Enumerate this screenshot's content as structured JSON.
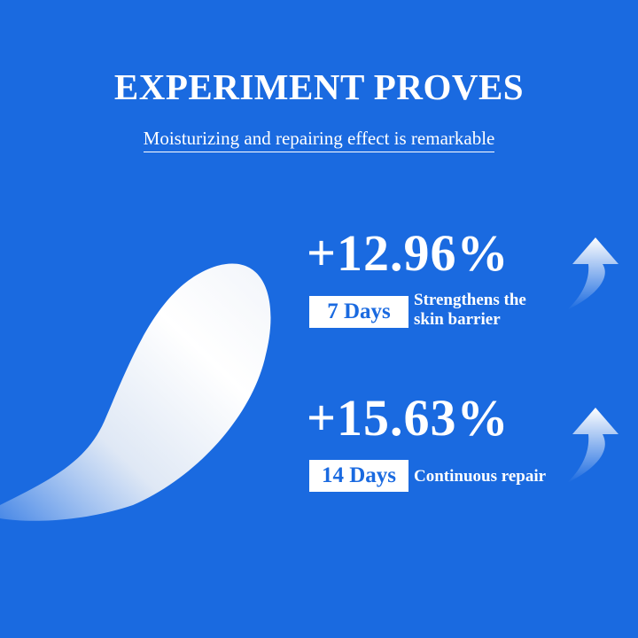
{
  "header": {
    "title": "EXPERIMENT PROVES",
    "subtitle": "Moisturizing and repairing effect is remarkable"
  },
  "stats": [
    {
      "value": "+12.96%",
      "period": "7 Days",
      "lines": [
        "Strengthens the",
        "skin barrier"
      ]
    },
    {
      "value": "+15.63%",
      "period": "14 Days",
      "lines": [
        "Continuous repair"
      ]
    }
  ]
}
